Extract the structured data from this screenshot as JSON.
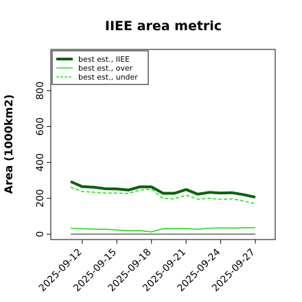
{
  "chart_data": {
    "type": "line",
    "title": "IIEE area metric",
    "xlabel": "",
    "ylabel": "Area (1000km2)",
    "x": [
      "2025-09-11",
      "2025-09-12",
      "2025-09-13",
      "2025-09-14",
      "2025-09-15",
      "2025-09-16",
      "2025-09-17",
      "2025-09-18",
      "2025-09-19",
      "2025-09-20",
      "2025-09-21",
      "2025-09-22",
      "2025-09-23",
      "2025-09-24",
      "2025-09-25",
      "2025-09-26",
      "2025-09-27"
    ],
    "x_tick_labels": [
      "2025-09-12",
      "2025-09-15",
      "2025-09-18",
      "2025-09-21",
      "2025-09-24",
      "2025-09-27"
    ],
    "y_ticks": [
      0,
      200,
      400,
      600,
      800
    ],
    "ylim": [
      -30,
      1030
    ],
    "grid": false,
    "legend_position": "top-left",
    "series": [
      {
        "name": "best est., IIEE",
        "color": "#006400",
        "style": "solid-thick",
        "values": [
          293,
          265,
          262,
          253,
          252,
          246,
          264,
          264,
          228,
          228,
          249,
          223,
          233,
          229,
          231,
          220,
          206
        ]
      },
      {
        "name": "best est., over",
        "color": "#22dd22",
        "style": "solid-thin",
        "values": [
          33,
          30,
          28,
          27,
          23,
          19,
          20,
          13,
          30,
          31,
          31,
          27,
          33,
          35,
          34,
          36,
          36
        ]
      },
      {
        "name": "best est., under",
        "color": "#22dd22",
        "style": "dashed",
        "values": [
          262,
          238,
          234,
          229,
          229,
          227,
          246,
          251,
          199,
          197,
          218,
          195,
          200,
          194,
          197,
          184,
          170
        ]
      }
    ],
    "zero_line": {
      "value": 0,
      "color": "#666666"
    }
  }
}
